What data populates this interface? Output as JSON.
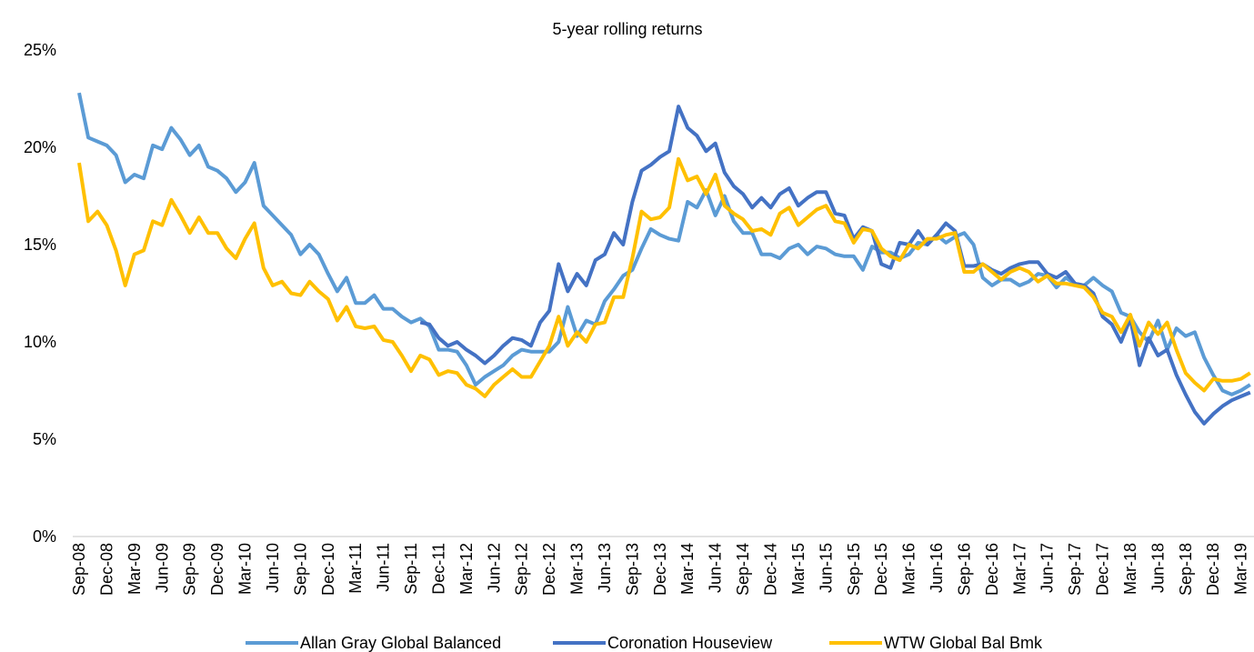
{
  "chart_data": {
    "type": "line",
    "title": "5-year rolling returns",
    "categories": [
      "Sep-08",
      null,
      null,
      "Dec-08",
      null,
      null,
      "Mar-09",
      null,
      null,
      "Jun-09",
      null,
      null,
      "Sep-09",
      null,
      null,
      "Dec-09",
      null,
      null,
      "Mar-10",
      null,
      null,
      "Jun-10",
      null,
      null,
      "Sep-10",
      null,
      null,
      "Dec-10",
      null,
      null,
      "Mar-11",
      null,
      null,
      "Jun-11",
      null,
      null,
      "Sep-11",
      null,
      null,
      "Dec-11",
      null,
      null,
      "Mar-12",
      null,
      null,
      "Jun-12",
      null,
      null,
      "Sep-12",
      null,
      null,
      "Dec-12",
      null,
      null,
      "Mar-13",
      null,
      null,
      "Jun-13",
      null,
      null,
      "Sep-13",
      null,
      null,
      "Dec-13",
      null,
      null,
      "Mar-14",
      null,
      null,
      "Jun-14",
      null,
      null,
      "Sep-14",
      null,
      null,
      "Dec-14",
      null,
      null,
      "Mar-15",
      null,
      null,
      "Jun-15",
      null,
      null,
      "Sep-15",
      null,
      null,
      "Dec-15",
      null,
      null,
      "Mar-16",
      null,
      null,
      "Jun-16",
      null,
      null,
      "Sep-16",
      null,
      null,
      "Dec-16",
      null,
      null,
      "Mar-17",
      null,
      null,
      "Jun-17",
      null,
      null,
      "Sep-17",
      null,
      null,
      "Dec-17",
      null,
      null,
      "Mar-18",
      null,
      null,
      "Jun-18",
      null,
      null,
      "Sep-18",
      null,
      null,
      "Dec-18",
      null,
      null,
      "Mar-19",
      null
    ],
    "series": [
      {
        "name": "Allan Gray Global Balanced",
        "color": "#5b9bd5",
        "values": [
          22.8,
          20.5,
          20.3,
          20.1,
          19.6,
          18.2,
          18.6,
          18.4,
          20.1,
          19.9,
          21.0,
          20.4,
          19.6,
          20.1,
          19.0,
          18.8,
          18.4,
          17.7,
          18.2,
          19.2,
          17.0,
          16.5,
          16.0,
          15.5,
          14.5,
          15.0,
          14.5,
          13.5,
          12.6,
          13.3,
          12.0,
          12.0,
          12.4,
          11.7,
          11.7,
          11.3,
          11.0,
          11.2,
          10.8,
          9.6,
          9.6,
          9.5,
          8.8,
          7.8,
          8.2,
          8.5,
          8.8,
          9.3,
          9.6,
          9.5,
          9.5,
          9.5,
          10.0,
          11.8,
          10.3,
          11.1,
          10.9,
          12.1,
          12.7,
          13.4,
          13.7,
          14.8,
          15.8,
          15.5,
          15.3,
          15.2,
          17.2,
          16.9,
          17.8,
          16.5,
          17.5,
          16.2,
          15.6,
          15.6,
          14.5,
          14.5,
          14.3,
          14.8,
          15.0,
          14.5,
          14.9,
          14.8,
          14.5,
          14.4,
          14.4,
          13.7,
          14.9,
          14.6,
          14.6,
          14.3,
          14.5,
          15.1,
          15.0,
          15.5,
          15.1,
          15.4,
          15.6,
          15.0,
          13.3,
          12.9,
          13.2,
          13.2,
          12.9,
          13.1,
          13.5,
          13.4,
          12.8,
          13.3,
          13.0,
          12.9,
          13.3,
          12.9,
          12.6,
          11.5,
          11.3,
          10.5,
          10.0,
          11.1,
          9.6,
          10.7,
          10.3,
          10.5,
          9.2,
          8.3,
          7.5,
          7.3,
          7.5,
          7.8
        ]
      },
      {
        "name": "Coronation Houseview",
        "color": "#4472c4",
        "values": [
          null,
          null,
          null,
          null,
          null,
          null,
          null,
          null,
          null,
          null,
          null,
          null,
          null,
          null,
          null,
          null,
          null,
          null,
          null,
          null,
          null,
          null,
          null,
          null,
          null,
          null,
          null,
          null,
          null,
          null,
          null,
          null,
          null,
          null,
          null,
          null,
          null,
          11.0,
          10.9,
          10.2,
          9.8,
          10.0,
          9.6,
          9.3,
          8.9,
          9.3,
          9.8,
          10.2,
          10.1,
          9.8,
          11.0,
          11.6,
          14.0,
          12.6,
          13.5,
          12.9,
          14.2,
          14.5,
          15.6,
          15.0,
          17.2,
          18.8,
          19.1,
          19.5,
          19.8,
          22.1,
          21.0,
          20.6,
          19.8,
          20.2,
          18.7,
          18.0,
          17.6,
          16.9,
          17.4,
          16.9,
          17.6,
          17.9,
          17.0,
          17.4,
          17.7,
          17.7,
          16.6,
          16.5,
          15.3,
          15.9,
          15.7,
          14.0,
          13.8,
          15.1,
          15.0,
          15.7,
          15.0,
          15.5,
          16.1,
          15.7,
          13.9,
          13.9,
          14.0,
          13.7,
          13.5,
          13.8,
          14.0,
          14.1,
          14.1,
          13.5,
          13.3,
          13.6,
          13.0,
          12.9,
          12.5,
          11.3,
          10.9,
          10.0,
          11.2,
          8.8,
          10.2,
          9.3,
          9.6,
          8.3,
          7.3,
          6.4,
          5.8,
          6.3,
          6.7,
          7.0,
          7.2,
          7.4
        ]
      },
      {
        "name": "WTW Global Bal Bmk",
        "color": "#ffc000",
        "values": [
          19.2,
          16.2,
          16.7,
          16.0,
          14.7,
          12.9,
          14.5,
          14.7,
          16.2,
          16.0,
          17.3,
          16.5,
          15.6,
          16.4,
          15.6,
          15.6,
          14.8,
          14.3,
          15.3,
          16.1,
          13.8,
          12.9,
          13.1,
          12.5,
          12.4,
          13.1,
          12.6,
          12.2,
          11.1,
          11.8,
          10.8,
          10.7,
          10.8,
          10.1,
          10.0,
          9.3,
          8.5,
          9.3,
          9.1,
          8.3,
          8.5,
          8.4,
          7.8,
          7.6,
          7.2,
          7.8,
          8.2,
          8.6,
          8.2,
          8.2,
          9.0,
          9.8,
          11.3,
          9.8,
          10.5,
          10.0,
          10.9,
          11.0,
          12.3,
          12.3,
          14.3,
          16.7,
          16.3,
          16.4,
          16.9,
          19.4,
          18.3,
          18.5,
          17.6,
          18.6,
          17.0,
          16.6,
          16.3,
          15.7,
          15.8,
          15.5,
          16.6,
          16.9,
          16.0,
          16.4,
          16.8,
          17.0,
          16.2,
          16.1,
          15.1,
          15.8,
          15.7,
          14.8,
          14.4,
          14.2,
          15.0,
          14.8,
          15.3,
          15.3,
          15.5,
          15.6,
          13.6,
          13.6,
          14.0,
          13.6,
          13.2,
          13.6,
          13.8,
          13.6,
          13.1,
          13.4,
          13.0,
          13.0,
          12.9,
          12.8,
          12.3,
          11.5,
          11.3,
          10.5,
          11.4,
          9.8,
          11.0,
          10.4,
          11.0,
          9.6,
          8.4,
          7.9,
          7.5,
          8.1,
          8.0,
          8.0,
          8.1,
          8.4
        ]
      }
    ],
    "ylim": [
      0,
      25
    ],
    "yticks": [
      {
        "value": 0,
        "label": "0%"
      },
      {
        "value": 5,
        "label": "5%"
      },
      {
        "value": 10,
        "label": "10%"
      },
      {
        "value": 15,
        "label": "15%"
      },
      {
        "value": 20,
        "label": "20%"
      },
      {
        "value": 25,
        "label": "25%"
      }
    ],
    "grid": false,
    "legend": "bottom"
  }
}
